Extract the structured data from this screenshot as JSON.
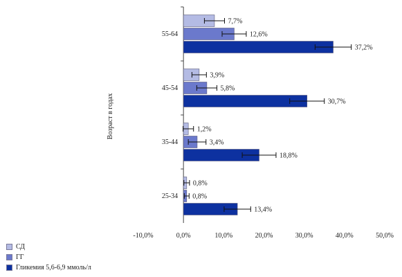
{
  "chart_data": {
    "type": "bar",
    "orientation": "horizontal",
    "ylabel": "Возраст в годах",
    "categories": [
      "55-64",
      "45-54",
      "35-44",
      "25-34"
    ],
    "series": [
      {
        "name": "СД",
        "values": [
          7.7,
          3.9,
          1.2,
          0.8
        ],
        "labels": [
          "7,7%",
          "3,9%",
          "1,2%",
          "0,8%"
        ],
        "errors": [
          2.5,
          1.8,
          1.3,
          0.7
        ],
        "color": "#b4bbe4"
      },
      {
        "name": "ГГ",
        "values": [
          12.6,
          5.8,
          3.4,
          0.8
        ],
        "labels": [
          "12,6%",
          "5,8%",
          "3,4%",
          "0,8%"
        ],
        "errors": [
          3.0,
          2.5,
          2.2,
          0.6
        ],
        "color": "#6b79cc"
      },
      {
        "name": "Гликемия 5,6-6,9 ммоль/л",
        "values": [
          37.2,
          30.7,
          18.8,
          13.4
        ],
        "labels": [
          "37,2%",
          "30,7%",
          "18,8%",
          "13,4%"
        ],
        "errors": [
          4.5,
          4.3,
          4.2,
          3.3
        ],
        "color": "#0d31a0"
      }
    ],
    "xlim": [
      -10,
      50
    ],
    "xticks": [
      -10,
      0,
      10,
      20,
      30,
      40,
      50
    ],
    "xtick_labels": [
      "-10,0%",
      "0,0%",
      "10,0%",
      "20,0%",
      "30,0%",
      "40,0%",
      "50,0%"
    ],
    "grid": false,
    "legend_position": "bottom-left"
  }
}
